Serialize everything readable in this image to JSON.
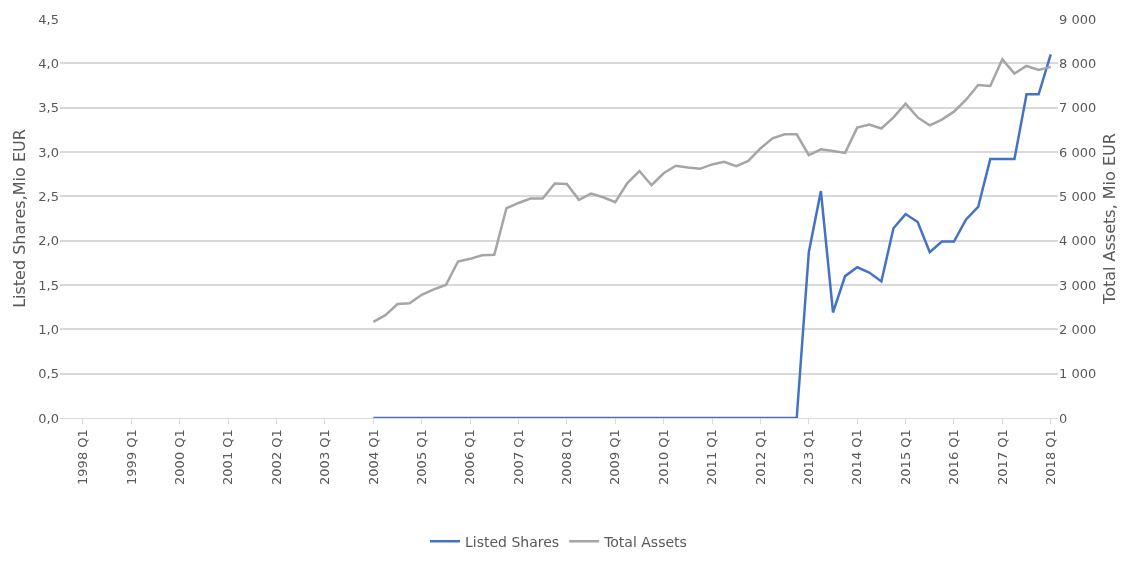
{
  "chart_data": {
    "type": "line",
    "categories": [
      "1998 Q1",
      null,
      null,
      null,
      "1999 Q1",
      null,
      null,
      null,
      "2000 Q1",
      null,
      null,
      null,
      "2001 Q1",
      null,
      null,
      null,
      "2002 Q1",
      null,
      null,
      null,
      "2003 Q1",
      null,
      null,
      null,
      "2004 Q1",
      null,
      null,
      null,
      "2005 Q1",
      null,
      null,
      null,
      "2006 Q1",
      null,
      null,
      null,
      "2007 Q1",
      null,
      null,
      null,
      "2008 Q1",
      null,
      null,
      null,
      "2009 Q1",
      null,
      null,
      null,
      "2010 Q1",
      null,
      null,
      null,
      "2011 Q1",
      null,
      null,
      null,
      "2012 Q1",
      null,
      null,
      null,
      "2013 Q1",
      null,
      null,
      null,
      "2014 Q1",
      null,
      null,
      null,
      "2015 Q1",
      null,
      null,
      null,
      "2016 Q1",
      null,
      null,
      null,
      "2017 Q1",
      null,
      null,
      null,
      "2018 Q1"
    ],
    "series": [
      {
        "name": "Listed Shares",
        "color": "#4472c4",
        "values": [
          null,
          null,
          null,
          null,
          null,
          null,
          null,
          null,
          null,
          null,
          null,
          null,
          null,
          null,
          null,
          null,
          null,
          null,
          null,
          null,
          null,
          null,
          null,
          null,
          0,
          0,
          0,
          0,
          0,
          0,
          0,
          0,
          0,
          0,
          0,
          0,
          0,
          0,
          0,
          0,
          0,
          0,
          0,
          0,
          0,
          0,
          0,
          0,
          0,
          0,
          0,
          0,
          0,
          0,
          0,
          0,
          0,
          0,
          0,
          0,
          1.87,
          2.56,
          1.19,
          1.6,
          1.7,
          1.64,
          1.54,
          2.14,
          2.3,
          2.21,
          1.87,
          1.99,
          1.99,
          2.24,
          2.38,
          2.92,
          2.92,
          2.92,
          3.65,
          3.65,
          4.1
        ]
      },
      {
        "name": "Total Assets",
        "color": "#a5a5a5",
        "axis": "y2",
        "values": [
          null,
          null,
          null,
          null,
          null,
          null,
          null,
          null,
          null,
          null,
          null,
          null,
          null,
          null,
          null,
          null,
          null,
          null,
          null,
          null,
          null,
          null,
          null,
          null,
          2170,
          2320,
          2570,
          2590,
          2780,
          2900,
          3000,
          3530,
          3590,
          3670,
          3680,
          4730,
          4850,
          4950,
          4950,
          5290,
          5280,
          4920,
          5060,
          4980,
          4870,
          5300,
          5570,
          5250,
          5520,
          5690,
          5650,
          5620,
          5720,
          5780,
          5680,
          5800,
          6080,
          6310,
          6400,
          6400,
          5930,
          6060,
          6020,
          5980,
          6550,
          6620,
          6530,
          6780,
          7090,
          6780,
          6600,
          6730,
          6910,
          7180,
          7510,
          7490,
          8090,
          7770,
          7940,
          7850,
          7920
        ]
      }
    ],
    "ylabel": "Listed Shares,Mio EUR",
    "y2label": "Total Assets, Mio EUR",
    "ylim": [
      0,
      4.5
    ],
    "yticks": [
      {
        "value": 0,
        "label": "0,0"
      },
      {
        "value": 0.5,
        "label": "0,5"
      },
      {
        "value": 1,
        "label": "1,0"
      },
      {
        "value": 1.5,
        "label": "1,5"
      },
      {
        "value": 2,
        "label": "2,0"
      },
      {
        "value": 2.5,
        "label": "2,5"
      },
      {
        "value": 3,
        "label": "3,0"
      },
      {
        "value": 3.5,
        "label": "3,5"
      },
      {
        "value": 4,
        "label": "4,0"
      },
      {
        "value": 4.5,
        "label": "4,5"
      }
    ],
    "y2lim": [
      0,
      9000
    ],
    "y2ticks": [
      0,
      {
        "value": 1000,
        "label": "1 000"
      },
      {
        "value": 2000,
        "label": "2 000"
      },
      {
        "value": 3000,
        "label": "3 000"
      },
      {
        "value": 4000,
        "label": "4 000"
      },
      {
        "value": 5000,
        "label": "5 000"
      },
      {
        "value": 6000,
        "label": "6 000"
      },
      {
        "value": 7000,
        "label": "7 000"
      },
      {
        "value": 8000,
        "label": "8 000"
      },
      {
        "value": 9000,
        "label": "9 000"
      }
    ],
    "grid": "y",
    "legend": "bottom",
    "marker": "none",
    "line_style": "solid"
  }
}
